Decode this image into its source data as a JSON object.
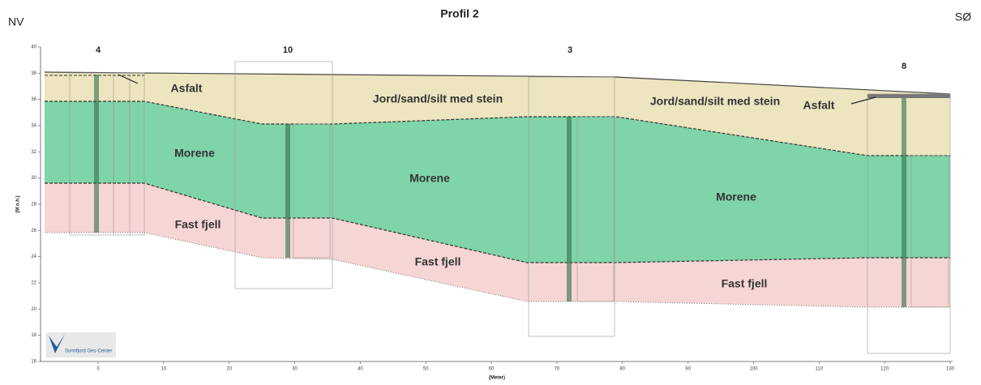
{
  "header": {
    "title": "Profil 2",
    "left": "NV",
    "right": "SØ"
  },
  "axes": {
    "y_label": "(M o.h.)",
    "x_label": "(Meter)",
    "xticks": [
      0,
      10,
      20,
      30,
      40,
      50,
      60,
      70,
      80,
      90,
      100,
      110,
      120,
      130
    ],
    "yticks": [
      16,
      18,
      20,
      22,
      24,
      26,
      28,
      30,
      32,
      34,
      36,
      38,
      40
    ]
  },
  "boreholes": [
    "4",
    "10",
    "3",
    "8"
  ],
  "layers": {
    "asfalt_1": "Asfalt",
    "asfalt_2": "Asfalt",
    "jord_1": "Jord/sand/silt med stein",
    "jord_2": "Jord/sand/silt med stein",
    "morene_1": "Morene",
    "morene_2": "Morene",
    "morene_3": "Morene",
    "fjell_1": "Fast fjell",
    "fjell_2": "Fast fjell",
    "fjell_3": "Fast fjell"
  },
  "logo": "Sunnfjord Geo Center"
}
